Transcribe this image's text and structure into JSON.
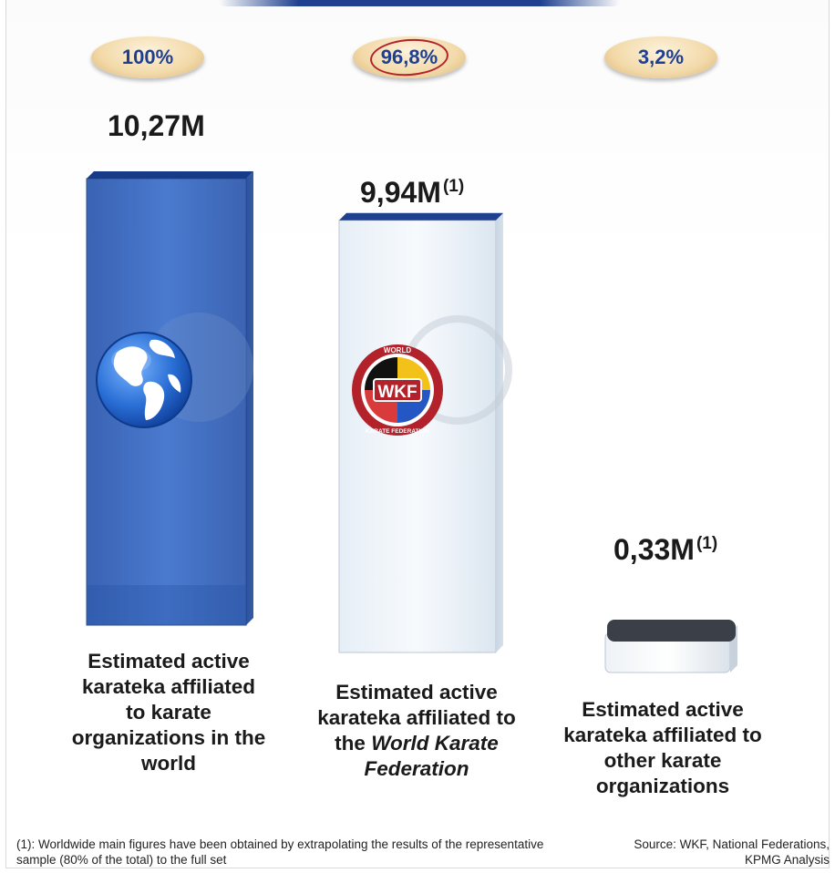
{
  "chart_data": {
    "type": "bar",
    "unit": "M",
    "categories": [
      "Estimated active karateka affiliated to karate organizations in the world",
      "Estimated active karateka affiliated to the World Karate Federation",
      "Estimated active karateka affiliated to other karate organizations"
    ],
    "values": [
      10.27,
      9.94,
      0.33
    ],
    "value_labels": [
      "10,27M",
      "9,94M",
      "0,33M"
    ],
    "value_label_notes": [
      "",
      "(1)",
      "(1)"
    ],
    "percent_labels": [
      "100%",
      "96,8%",
      "3,2%"
    ],
    "colors": [
      "#2f5fb8",
      "#dde9f3",
      "#dfe6ee"
    ],
    "top_colors": [
      "#173b86",
      "#1f3f8f",
      "#3b3f47"
    ],
    "icons": [
      "globe-icon",
      "wkf-logo",
      ""
    ],
    "caption_lines": [
      [
        [
          "Estimated active",
          false
        ],
        [
          "karateka affiliated",
          false
        ],
        [
          "to karate",
          false
        ],
        [
          "organizations in the",
          false
        ],
        [
          "world",
          false
        ]
      ],
      [
        [
          "Estimated active",
          false
        ],
        [
          "karateka affiliated to",
          false
        ],
        [
          "the ",
          false,
          "World Karate",
          true
        ],
        [
          "Federation",
          true
        ]
      ],
      [
        [
          "Estimated active",
          false
        ],
        [
          "karateka affiliated to",
          false
        ],
        [
          "other karate",
          false
        ],
        [
          "organizations",
          false
        ]
      ]
    ],
    "footnote": "(1): Worldwide main figures have been obtained by extrapolating the results of the representative sample (80% of the total) to the full set",
    "source": "Source: WKF, National Federations, KPMG Analysis",
    "logo_text": [
      "WORLD",
      "WKF",
      "KARATE FEDERATION"
    ]
  }
}
